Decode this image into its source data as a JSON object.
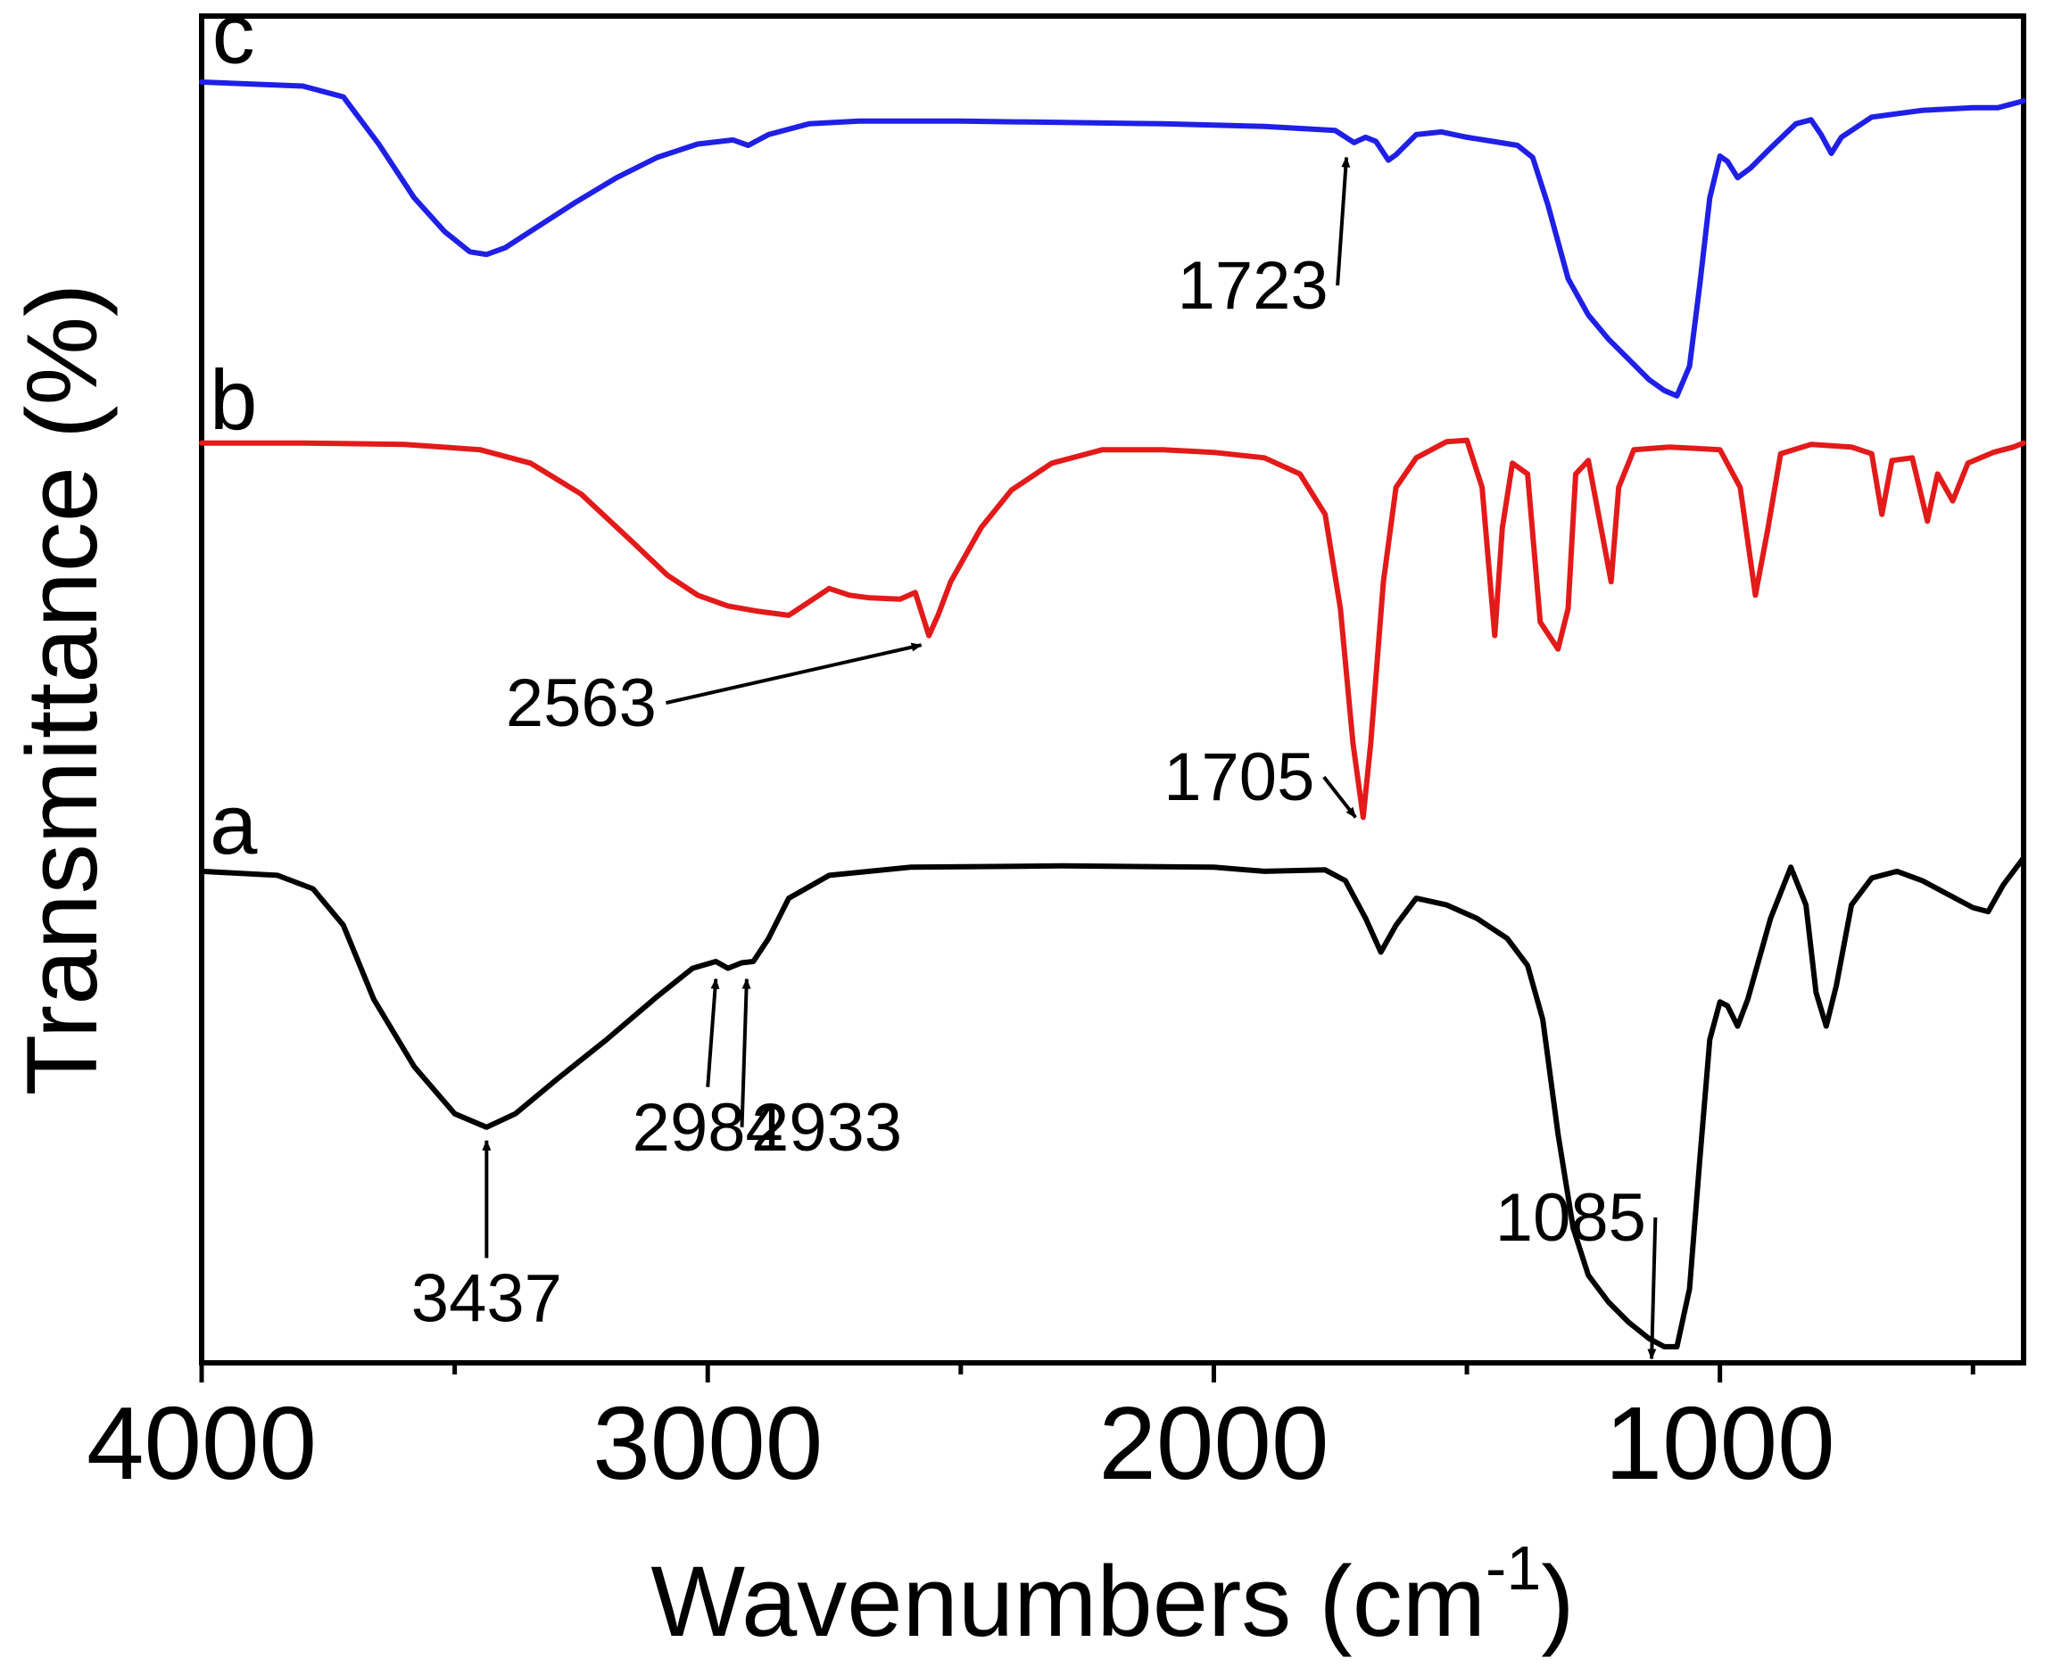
{
  "chart_data": {
    "type": "line",
    "title": "",
    "xlabel": "Wavenumbers (cm",
    "xlabel_sup": "-1",
    "xlabel_close": ")",
    "ylabel": "Transmittance (%)",
    "xlim": [
      4000,
      400
    ],
    "x_reversed": true,
    "ylim": [
      0,
      1
    ],
    "grid": false,
    "y_ticks_shown": false,
    "x_ticks": [
      {
        "value": 4000,
        "label": "4000"
      },
      {
        "value": 3000,
        "label": "3000"
      },
      {
        "value": 2000,
        "label": "2000"
      },
      {
        "value": 1000,
        "label": "1000"
      }
    ],
    "x_minor_ticks": [
      3500,
      2500,
      1500,
      500
    ],
    "series": [
      {
        "name": "c",
        "color": "#1f1fe6",
        "points": [
          [
            4000,
            0.951
          ],
          [
            3800,
            0.948
          ],
          [
            3720,
            0.94
          ],
          [
            3650,
            0.905
          ],
          [
            3580,
            0.865
          ],
          [
            3520,
            0.84
          ],
          [
            3470,
            0.825
          ],
          [
            3437,
            0.823
          ],
          [
            3400,
            0.828
          ],
          [
            3330,
            0.845
          ],
          [
            3260,
            0.862
          ],
          [
            3180,
            0.88
          ],
          [
            3100,
            0.895
          ],
          [
            3020,
            0.905
          ],
          [
            2950,
            0.908
          ],
          [
            2920,
            0.904
          ],
          [
            2880,
            0.912
          ],
          [
            2800,
            0.92
          ],
          [
            2700,
            0.922
          ],
          [
            2500,
            0.922
          ],
          [
            2300,
            0.921
          ],
          [
            2100,
            0.92
          ],
          [
            1900,
            0.918
          ],
          [
            1760,
            0.915
          ],
          [
            1723,
            0.906
          ],
          [
            1700,
            0.91
          ],
          [
            1680,
            0.907
          ],
          [
            1655,
            0.893
          ],
          [
            1640,
            0.897
          ],
          [
            1600,
            0.912
          ],
          [
            1550,
            0.914
          ],
          [
            1500,
            0.91
          ],
          [
            1450,
            0.907
          ],
          [
            1400,
            0.904
          ],
          [
            1370,
            0.895
          ],
          [
            1340,
            0.86
          ],
          [
            1300,
            0.805
          ],
          [
            1260,
            0.778
          ],
          [
            1220,
            0.76
          ],
          [
            1180,
            0.745
          ],
          [
            1140,
            0.73
          ],
          [
            1110,
            0.722
          ],
          [
            1085,
            0.718
          ],
          [
            1060,
            0.74
          ],
          [
            1040,
            0.8
          ],
          [
            1020,
            0.865
          ],
          [
            1000,
            0.896
          ],
          [
            985,
            0.892
          ],
          [
            965,
            0.88
          ],
          [
            940,
            0.887
          ],
          [
            900,
            0.902
          ],
          [
            850,
            0.92
          ],
          [
            820,
            0.923
          ],
          [
            800,
            0.912
          ],
          [
            780,
            0.898
          ],
          [
            760,
            0.91
          ],
          [
            700,
            0.925
          ],
          [
            600,
            0.93
          ],
          [
            500,
            0.932
          ],
          [
            450,
            0.932
          ],
          [
            400,
            0.937
          ]
        ]
      },
      {
        "name": "b",
        "color": "#e31a1a",
        "points": [
          [
            4000,
            0.683
          ],
          [
            3800,
            0.683
          ],
          [
            3600,
            0.682
          ],
          [
            3450,
            0.678
          ],
          [
            3350,
            0.668
          ],
          [
            3250,
            0.645
          ],
          [
            3150,
            0.61
          ],
          [
            3080,
            0.585
          ],
          [
            3020,
            0.57
          ],
          [
            2960,
            0.562
          ],
          [
            2900,
            0.558
          ],
          [
            2840,
            0.555
          ],
          [
            2800,
            0.565
          ],
          [
            2760,
            0.575
          ],
          [
            2720,
            0.57
          ],
          [
            2680,
            0.568
          ],
          [
            2620,
            0.567
          ],
          [
            2590,
            0.572
          ],
          [
            2563,
            0.54
          ],
          [
            2545,
            0.555
          ],
          [
            2520,
            0.58
          ],
          [
            2460,
            0.62
          ],
          [
            2400,
            0.648
          ],
          [
            2320,
            0.668
          ],
          [
            2220,
            0.678
          ],
          [
            2100,
            0.678
          ],
          [
            2000,
            0.676
          ],
          [
            1900,
            0.672
          ],
          [
            1830,
            0.66
          ],
          [
            1780,
            0.63
          ],
          [
            1750,
            0.56
          ],
          [
            1725,
            0.46
          ],
          [
            1705,
            0.405
          ],
          [
            1690,
            0.46
          ],
          [
            1665,
            0.58
          ],
          [
            1640,
            0.65
          ],
          [
            1600,
            0.672
          ],
          [
            1540,
            0.684
          ],
          [
            1500,
            0.685
          ],
          [
            1470,
            0.65
          ],
          [
            1445,
            0.54
          ],
          [
            1430,
            0.62
          ],
          [
            1410,
            0.668
          ],
          [
            1380,
            0.66
          ],
          [
            1355,
            0.55
          ],
          [
            1320,
            0.53
          ],
          [
            1300,
            0.56
          ],
          [
            1285,
            0.66
          ],
          [
            1260,
            0.67
          ],
          [
            1235,
            0.62
          ],
          [
            1215,
            0.58
          ],
          [
            1200,
            0.65
          ],
          [
            1170,
            0.678
          ],
          [
            1100,
            0.68
          ],
          [
            1000,
            0.678
          ],
          [
            960,
            0.65
          ],
          [
            930,
            0.57
          ],
          [
            905,
            0.62
          ],
          [
            880,
            0.675
          ],
          [
            820,
            0.682
          ],
          [
            740,
            0.68
          ],
          [
            700,
            0.675
          ],
          [
            680,
            0.63
          ],
          [
            660,
            0.67
          ],
          [
            620,
            0.672
          ],
          [
            590,
            0.625
          ],
          [
            570,
            0.66
          ],
          [
            540,
            0.64
          ],
          [
            510,
            0.668
          ],
          [
            460,
            0.676
          ],
          [
            420,
            0.68
          ],
          [
            400,
            0.683
          ]
        ]
      },
      {
        "name": "a",
        "color": "#000000",
        "points": [
          [
            4000,
            0.365
          ],
          [
            3850,
            0.362
          ],
          [
            3780,
            0.352
          ],
          [
            3720,
            0.325
          ],
          [
            3660,
            0.27
          ],
          [
            3580,
            0.22
          ],
          [
            3500,
            0.185
          ],
          [
            3437,
            0.175
          ],
          [
            3380,
            0.185
          ],
          [
            3300,
            0.21
          ],
          [
            3200,
            0.24
          ],
          [
            3100,
            0.272
          ],
          [
            3030,
            0.293
          ],
          [
            2984,
            0.298
          ],
          [
            2960,
            0.293
          ],
          [
            2933,
            0.297
          ],
          [
            2910,
            0.298
          ],
          [
            2880,
            0.315
          ],
          [
            2840,
            0.345
          ],
          [
            2760,
            0.362
          ],
          [
            2600,
            0.368
          ],
          [
            2300,
            0.369
          ],
          [
            2000,
            0.368
          ],
          [
            1900,
            0.365
          ],
          [
            1780,
            0.366
          ],
          [
            1740,
            0.358
          ],
          [
            1700,
            0.33
          ],
          [
            1670,
            0.305
          ],
          [
            1640,
            0.325
          ],
          [
            1600,
            0.345
          ],
          [
            1540,
            0.34
          ],
          [
            1480,
            0.33
          ],
          [
            1420,
            0.315
          ],
          [
            1380,
            0.295
          ],
          [
            1350,
            0.255
          ],
          [
            1320,
            0.17
          ],
          [
            1290,
            0.1
          ],
          [
            1260,
            0.065
          ],
          [
            1220,
            0.045
          ],
          [
            1180,
            0.03
          ],
          [
            1140,
            0.018
          ],
          [
            1110,
            0.012
          ],
          [
            1085,
            0.012
          ],
          [
            1060,
            0.055
          ],
          [
            1040,
            0.15
          ],
          [
            1020,
            0.24
          ],
          [
            1000,
            0.268
          ],
          [
            985,
            0.265
          ],
          [
            965,
            0.25
          ],
          [
            945,
            0.27
          ],
          [
            900,
            0.33
          ],
          [
            860,
            0.368
          ],
          [
            830,
            0.34
          ],
          [
            810,
            0.275
          ],
          [
            790,
            0.25
          ],
          [
            770,
            0.28
          ],
          [
            740,
            0.34
          ],
          [
            700,
            0.36
          ],
          [
            650,
            0.365
          ],
          [
            600,
            0.358
          ],
          [
            560,
            0.35
          ],
          [
            500,
            0.338
          ],
          [
            470,
            0.335
          ],
          [
            440,
            0.355
          ],
          [
            400,
            0.375
          ]
        ]
      }
    ],
    "curve_labels": [
      {
        "text": "c",
        "x": 3990,
        "y": 0.985
      },
      {
        "text": "b",
        "x": 3990,
        "y": 0.713
      },
      {
        "text": "a",
        "x": 3990,
        "y": 0.398
      }
    ],
    "annotations": [
      {
        "text": "1723",
        "text_x": 1923,
        "text_y": 0.8,
        "tip_x": 1738,
        "tip_y": 0.895
      },
      {
        "text": "2563",
        "text_x": 3250,
        "text_y": 0.49,
        "tip_x": 2578,
        "tip_y": 0.533
      },
      {
        "text": "1705",
        "text_x": 1950,
        "text_y": 0.435,
        "tip_x": 1720,
        "tip_y": 0.405
      },
      {
        "text": "3437",
        "text_x": 3437,
        "text_y": 0.048,
        "tip_x": 3437,
        "tip_y": 0.165
      },
      {
        "text": "2984",
        "text_x": 3000,
        "text_y": 0.175,
        "tip_x": 2984,
        "tip_y": 0.285
      },
      {
        "text": "2933",
        "text_x": 2765,
        "text_y": 0.175,
        "tip_x": 2923,
        "tip_y": 0.285
      },
      {
        "text": "1085",
        "text_x": 1295,
        "text_y": 0.108,
        "tip_x": 1135,
        "tip_y": 0.003
      }
    ]
  }
}
